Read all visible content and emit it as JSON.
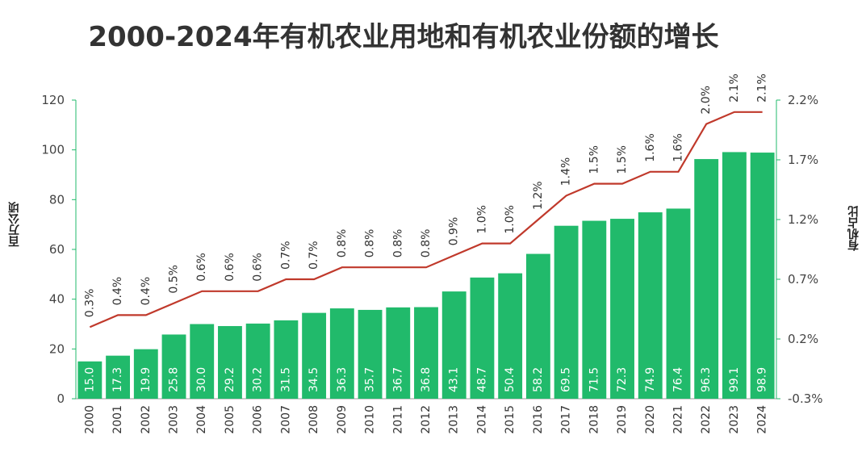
{
  "chart_data": {
    "type": "bar+line",
    "title": "2000-2024年有机农业用地和有机农业份额的增长",
    "categories": [
      "2000",
      "2001",
      "2002",
      "2003",
      "2004",
      "2005",
      "2006",
      "2007",
      "2008",
      "2009",
      "2010",
      "2011",
      "2012",
      "2013",
      "2014",
      "2015",
      "2016",
      "2017",
      "2018",
      "2019",
      "2020",
      "2021",
      "2022",
      "2023",
      "2024"
    ],
    "series": [
      {
        "name": "有机农业用地",
        "axis": "left",
        "color": "#21ba6b",
        "values": [
          15.0,
          17.3,
          19.9,
          25.8,
          30.0,
          29.2,
          30.2,
          31.5,
          34.5,
          36.3,
          35.7,
          36.7,
          36.8,
          43.1,
          48.7,
          50.4,
          58.2,
          69.5,
          71.5,
          72.3,
          74.9,
          76.4,
          96.3,
          99.1,
          98.9
        ],
        "labels": [
          "15.0",
          "17.3",
          "19.9",
          "25.8",
          "30.0",
          "29.2",
          "30.2",
          "31.5",
          "34.5",
          "36.3",
          "35.7",
          "36.7",
          "36.8",
          "43.1",
          "48.7",
          "50.4",
          "58.2",
          "69.5",
          "71.5",
          "72.3",
          "74.9",
          "76.4",
          "96.3",
          "99.1",
          "98.9"
        ]
      },
      {
        "name": "有机占比",
        "axis": "right",
        "color": "#c0392b",
        "values": [
          0.3,
          0.4,
          0.4,
          0.5,
          0.6,
          0.6,
          0.6,
          0.7,
          0.7,
          0.8,
          0.8,
          0.8,
          0.8,
          0.9,
          1.0,
          1.0,
          1.2,
          1.4,
          1.5,
          1.5,
          1.6,
          1.6,
          2.0,
          2.1,
          2.1
        ],
        "labels": [
          "0.3%",
          "0.4%",
          "0.4%",
          "0.5%",
          "0.6%",
          "0.6%",
          "0.6%",
          "0.7%",
          "0.7%",
          "0.8%",
          "0.8%",
          "0.8%",
          "0.8%",
          "0.9%",
          "1.0%",
          "1.0%",
          "1.2%",
          "1.4%",
          "1.5%",
          "1.5%",
          "1.6%",
          "1.6%",
          "2.0%",
          "2.1%",
          "2.1%"
        ]
      }
    ],
    "ylabel": "百万公顷",
    "ylim": [
      0,
      120
    ],
    "yticks": [
      "0",
      "20",
      "40",
      "60",
      "80",
      "100",
      "120"
    ],
    "y2label": "有机占比",
    "y2lim": [
      -0.3,
      2.2
    ],
    "y2ticks": [
      "-0.3%",
      "0.2%",
      "0.7%",
      "1.2%",
      "1.7%",
      "2.2%"
    ],
    "grid": false
  },
  "colors": {
    "bar": "#21ba6b",
    "line": "#c0392b",
    "axis": "#21ba6b",
    "text": "#333333"
  }
}
